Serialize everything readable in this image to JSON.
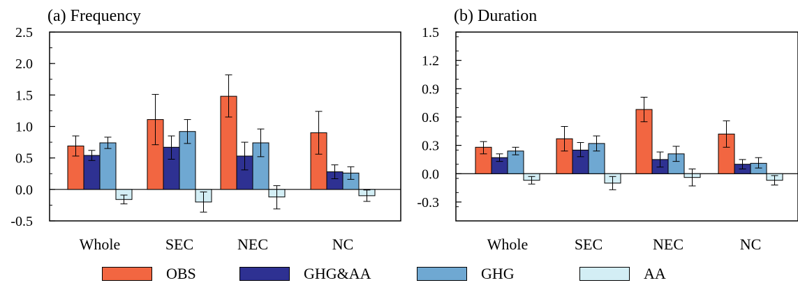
{
  "chart_data": [
    {
      "type": "bar",
      "title": "(a) Frequency",
      "categories": [
        "Whole",
        "SEC",
        "NEC",
        "NC"
      ],
      "ylim": [
        -0.5,
        2.5
      ],
      "yticks": [
        "-0.5",
        "0.0",
        "0.5",
        "1.0",
        "1.5",
        "2.0",
        "2.5"
      ],
      "ytick_values": [
        -0.5,
        0.0,
        0.5,
        1.0,
        1.5,
        2.0,
        2.5
      ],
      "series": [
        {
          "name": "OBS",
          "values": [
            0.69,
            1.11,
            1.48,
            0.9
          ],
          "err_low": [
            0.53,
            0.71,
            1.15,
            0.56
          ],
          "err_high": [
            0.85,
            1.51,
            1.82,
            1.24
          ]
        },
        {
          "name": "GHG&AA",
          "values": [
            0.54,
            0.67,
            0.53,
            0.28
          ],
          "err_low": [
            0.46,
            0.48,
            0.31,
            0.17
          ],
          "err_high": [
            0.62,
            0.85,
            0.75,
            0.39
          ]
        },
        {
          "name": "GHG",
          "values": [
            0.74,
            0.92,
            0.74,
            0.26
          ],
          "err_low": [
            0.65,
            0.73,
            0.52,
            0.16
          ],
          "err_high": [
            0.83,
            1.11,
            0.96,
            0.36
          ]
        },
        {
          "name": "AA",
          "values": [
            -0.16,
            -0.2,
            -0.12,
            -0.1
          ],
          "err_low": [
            -0.23,
            -0.36,
            -0.31,
            -0.19
          ],
          "err_high": [
            -0.09,
            -0.04,
            0.06,
            -0.01
          ]
        }
      ]
    },
    {
      "type": "bar",
      "title": "(b) Duration",
      "categories": [
        "Whole",
        "SEC",
        "NEC",
        "NC"
      ],
      "ylim": [
        -0.5,
        1.5
      ],
      "yticks": [
        "-0.3",
        "0.0",
        "0.3",
        "0.6",
        "0.9",
        "1.2",
        "1.5"
      ],
      "ytick_values": [
        -0.3,
        0.0,
        0.3,
        0.6,
        0.9,
        1.2,
        1.5
      ],
      "series": [
        {
          "name": "OBS",
          "values": [
            0.28,
            0.37,
            0.68,
            0.42
          ],
          "err_low": [
            0.21,
            0.24,
            0.55,
            0.28
          ],
          "err_high": [
            0.34,
            0.5,
            0.81,
            0.56
          ]
        },
        {
          "name": "GHG&AA",
          "values": [
            0.17,
            0.25,
            0.15,
            0.1
          ],
          "err_low": [
            0.13,
            0.18,
            0.07,
            0.05
          ],
          "err_high": [
            0.21,
            0.33,
            0.23,
            0.15
          ]
        },
        {
          "name": "GHG",
          "values": [
            0.24,
            0.32,
            0.21,
            0.11
          ],
          "err_low": [
            0.2,
            0.24,
            0.13,
            0.06
          ],
          "err_high": [
            0.28,
            0.4,
            0.29,
            0.17
          ]
        },
        {
          "name": "AA",
          "values": [
            -0.07,
            -0.1,
            -0.04,
            -0.07
          ],
          "err_low": [
            -0.11,
            -0.17,
            -0.13,
            -0.12
          ],
          "err_high": [
            -0.03,
            -0.03,
            0.05,
            -0.02
          ]
        }
      ]
    }
  ],
  "legend": [
    {
      "label": "OBS",
      "color": "#f26641"
    },
    {
      "label": "GHG&AA",
      "color": "#2e3192"
    },
    {
      "label": "GHG",
      "color": "#6fa8d2"
    },
    {
      "label": "AA",
      "color": "#d3eef5"
    }
  ]
}
